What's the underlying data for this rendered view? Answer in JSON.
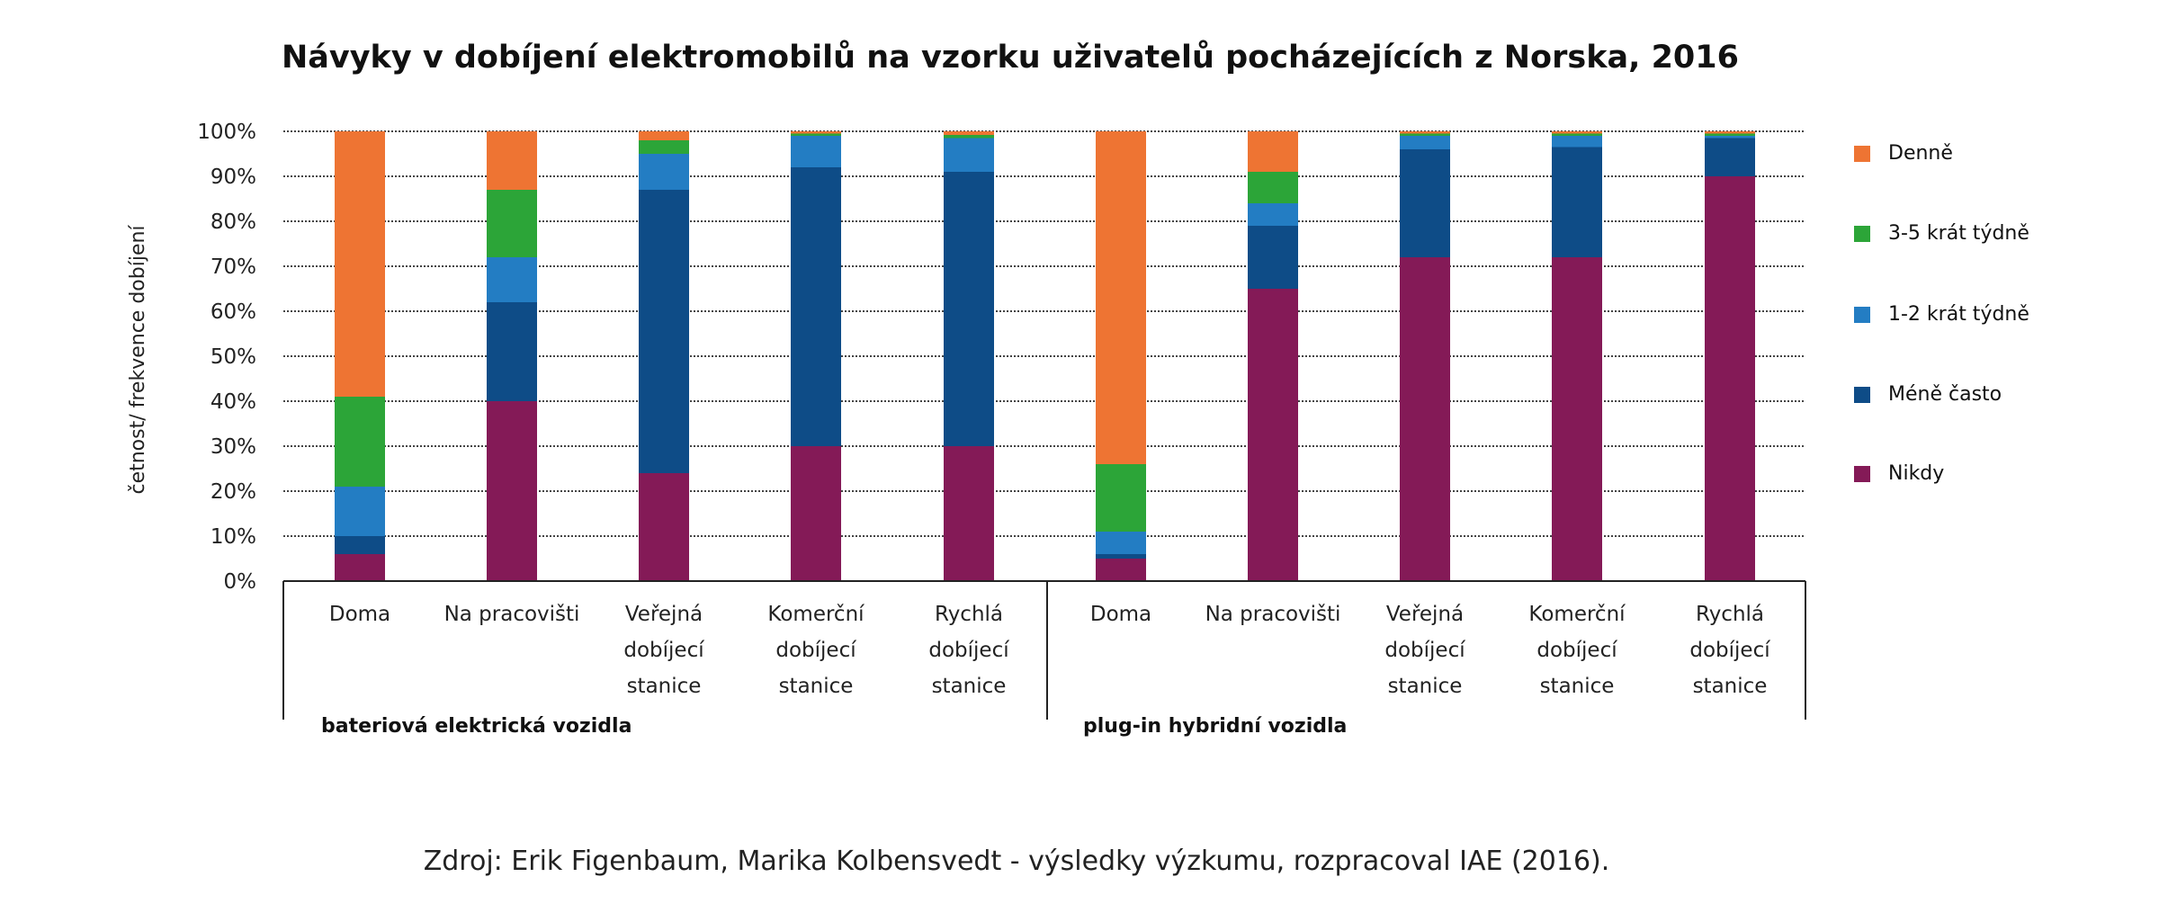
{
  "chart_data": {
    "type": "bar",
    "stacked": true,
    "title": "Návyky v dobíjení elektromobilů na vzorku uživatelů pocházejících z Norska, 2016",
    "ylabel": "četnost/ frekvence dobíjení",
    "xlabel": "",
    "ylim": [
      0,
      100
    ],
    "yticks": [
      "0%",
      "10%",
      "20%",
      "30%",
      "40%",
      "50%",
      "60%",
      "70%",
      "80%",
      "90%",
      "100%"
    ],
    "grid": true,
    "legend_position": "right",
    "groups": [
      {
        "label": "bateriová elektrická vozidla",
        "categories": [
          [
            "Doma"
          ],
          [
            "Na pracovišti"
          ],
          [
            "Veřejná",
            "dobíjecí",
            "stanice"
          ],
          [
            "Komerční",
            "dobíjecí",
            "stanice"
          ],
          [
            "Rychlá",
            "dobíjecí",
            "stanice"
          ]
        ]
      },
      {
        "label": "plug-in hybridní vozidla",
        "categories": [
          [
            "Doma"
          ],
          [
            "Na pracovišti"
          ],
          [
            "Veřejná",
            "dobíjecí",
            "stanice"
          ],
          [
            "Komerční",
            "dobíjecí",
            "stanice"
          ],
          [
            "Rychlá",
            "dobíjecí",
            "stanice"
          ]
        ]
      }
    ],
    "series": [
      {
        "name": "Nikdy",
        "color": "#841a57",
        "values": [
          6,
          40,
          24,
          30,
          30,
          5,
          65,
          72,
          72,
          90
        ]
      },
      {
        "name": "Méně často",
        "color": "#0e4c87",
        "values": [
          4,
          22,
          63,
          62,
          61,
          1,
          14,
          24,
          24.5,
          8.5
        ]
      },
      {
        "name": "1-2 krát týdně",
        "color": "#237dc3",
        "values": [
          11,
          10,
          8,
          7,
          7.5,
          5,
          5,
          3,
          2.5,
          0.5
        ]
      },
      {
        "name": "3-5 krát týdně",
        "color": "#2ca538",
        "values": [
          20,
          15,
          3,
          0.5,
          0.7,
          15,
          7,
          0.5,
          0.5,
          0.5
        ]
      },
      {
        "name": "Denně",
        "color": "#ee7433",
        "values": [
          59,
          13,
          2,
          0.5,
          0.8,
          74,
          9,
          0.5,
          0.5,
          0.5
        ]
      }
    ],
    "legend_order": [
      "Denně",
      "3-5 krát týdně",
      "1-2 krát týdně",
      "Méně často",
      "Nikdy"
    ]
  },
  "source": "Zdroj: Erik Figenbaum, Marika Kolbensvedt - výsledky výzkumu, rozpracoval IAE (2016)."
}
